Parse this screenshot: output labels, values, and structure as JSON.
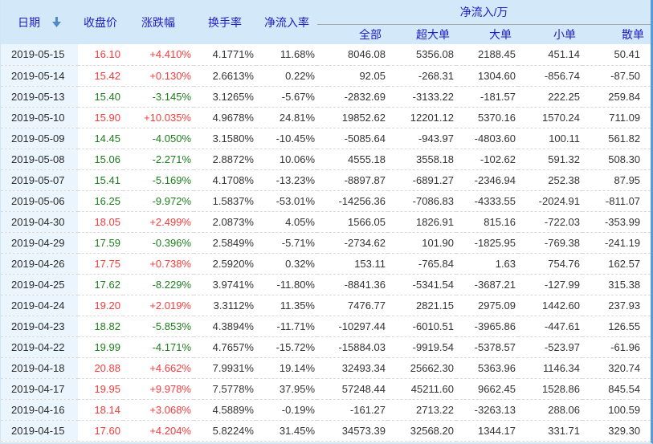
{
  "header": {
    "date": "日期",
    "close": "收盘价",
    "change": "涨跌幅",
    "turnover": "换手率",
    "inflow_rate": "净流入率",
    "inflow_group": "净流入/万",
    "sub_all": "全部",
    "sub_super": "超大单",
    "sub_large": "大单",
    "sub_small": "小单",
    "sub_retail": "散单"
  },
  "colors": {
    "up_red": "#f53c3c",
    "down_green": "#1d7d1d",
    "header_text_blue": "#1e1ec8",
    "header_bg": "#d3e9f9",
    "date_column_bg": "#eaf5fd",
    "sort_arrow_blue": "#4e8bc8"
  },
  "rows": [
    {
      "date": "2019-05-15",
      "close": "16.10",
      "change": "+4.410%",
      "turnover": "4.1771%",
      "inflow_rate": "11.68%",
      "all": "8046.08",
      "super": "5356.08",
      "large": "2188.45",
      "small": "451.14",
      "retail": "50.41"
    },
    {
      "date": "2019-05-14",
      "close": "15.42",
      "change": "+0.130%",
      "turnover": "2.6613%",
      "inflow_rate": "0.22%",
      "all": "92.05",
      "super": "-268.31",
      "large": "1304.60",
      "small": "-856.74",
      "retail": "-87.50"
    },
    {
      "date": "2019-05-13",
      "close": "15.40",
      "change": "-3.145%",
      "turnover": "3.1265%",
      "inflow_rate": "-5.67%",
      "all": "-2832.69",
      "super": "-3133.22",
      "large": "-181.57",
      "small": "222.25",
      "retail": "259.84"
    },
    {
      "date": "2019-05-10",
      "close": "15.90",
      "change": "+10.035%",
      "turnover": "4.9678%",
      "inflow_rate": "24.81%",
      "all": "19852.62",
      "super": "12201.12",
      "large": "5370.16",
      "small": "1570.24",
      "retail": "711.09"
    },
    {
      "date": "2019-05-09",
      "close": "14.45",
      "change": "-4.050%",
      "turnover": "3.1580%",
      "inflow_rate": "-10.45%",
      "all": "-5085.64",
      "super": "-943.97",
      "large": "-4803.60",
      "small": "100.11",
      "retail": "561.82"
    },
    {
      "date": "2019-05-08",
      "close": "15.06",
      "change": "-2.271%",
      "turnover": "2.8872%",
      "inflow_rate": "10.06%",
      "all": "4555.18",
      "super": "3558.18",
      "large": "-102.62",
      "small": "591.32",
      "retail": "508.30"
    },
    {
      "date": "2019-05-07",
      "close": "15.41",
      "change": "-5.169%",
      "turnover": "4.1708%",
      "inflow_rate": "-13.23%",
      "all": "-8897.87",
      "super": "-6891.27",
      "large": "-2346.94",
      "small": "252.38",
      "retail": "87.95"
    },
    {
      "date": "2019-05-06",
      "close": "16.25",
      "change": "-9.972%",
      "turnover": "1.5837%",
      "inflow_rate": "-53.01%",
      "all": "-14256.36",
      "super": "-7086.83",
      "large": "-4333.55",
      "small": "-2024.91",
      "retail": "-811.07"
    },
    {
      "date": "2019-04-30",
      "close": "18.05",
      "change": "+2.499%",
      "turnover": "2.0873%",
      "inflow_rate": "4.05%",
      "all": "1566.05",
      "super": "1826.91",
      "large": "815.16",
      "small": "-722.03",
      "retail": "-353.99"
    },
    {
      "date": "2019-04-29",
      "close": "17.59",
      "change": "-0.396%",
      "turnover": "2.5849%",
      "inflow_rate": "-5.71%",
      "all": "-2734.62",
      "super": "101.90",
      "large": "-1825.95",
      "small": "-769.38",
      "retail": "-241.19"
    },
    {
      "date": "2019-04-26",
      "close": "17.75",
      "change": "+0.738%",
      "turnover": "2.5920%",
      "inflow_rate": "0.32%",
      "all": "153.11",
      "super": "-765.84",
      "large": "1.63",
      "small": "754.76",
      "retail": "162.57"
    },
    {
      "date": "2019-04-25",
      "close": "17.62",
      "change": "-8.229%",
      "turnover": "3.9741%",
      "inflow_rate": "-11.80%",
      "all": "-8841.36",
      "super": "-5341.54",
      "large": "-3687.21",
      "small": "-127.99",
      "retail": "315.38"
    },
    {
      "date": "2019-04-24",
      "close": "19.20",
      "change": "+2.019%",
      "turnover": "3.3112%",
      "inflow_rate": "11.35%",
      "all": "7476.77",
      "super": "2821.15",
      "large": "2975.09",
      "small": "1442.60",
      "retail": "237.93"
    },
    {
      "date": "2019-04-23",
      "close": "18.82",
      "change": "-5.853%",
      "turnover": "4.3894%",
      "inflow_rate": "-11.71%",
      "all": "-10297.44",
      "super": "-6010.51",
      "large": "-3965.86",
      "small": "-447.61",
      "retail": "126.55"
    },
    {
      "date": "2019-04-22",
      "close": "19.99",
      "change": "-4.171%",
      "turnover": "4.7657%",
      "inflow_rate": "-15.72%",
      "all": "-15884.03",
      "super": "-9919.54",
      "large": "-5378.57",
      "small": "-523.97",
      "retail": "-61.96"
    },
    {
      "date": "2019-04-18",
      "close": "20.88",
      "change": "+4.662%",
      "turnover": "7.9931%",
      "inflow_rate": "19.14%",
      "all": "32493.34",
      "super": "25662.30",
      "large": "5363.96",
      "small": "1146.34",
      "retail": "320.74"
    },
    {
      "date": "2019-04-17",
      "close": "19.95",
      "change": "+9.978%",
      "turnover": "7.5778%",
      "inflow_rate": "37.95%",
      "all": "57248.44",
      "super": "45211.60",
      "large": "9662.45",
      "small": "1528.86",
      "retail": "845.54"
    },
    {
      "date": "2019-04-16",
      "close": "18.14",
      "change": "+3.068%",
      "turnover": "4.5889%",
      "inflow_rate": "-0.19%",
      "all": "-161.27",
      "super": "2713.22",
      "large": "-3263.13",
      "small": "288.06",
      "retail": "100.59"
    },
    {
      "date": "2019-04-15",
      "close": "17.60",
      "change": "+4.204%",
      "turnover": "5.8224%",
      "inflow_rate": "31.45%",
      "all": "34573.39",
      "super": "32568.20",
      "large": "1344.17",
      "small": "331.71",
      "retail": "329.30"
    }
  ]
}
